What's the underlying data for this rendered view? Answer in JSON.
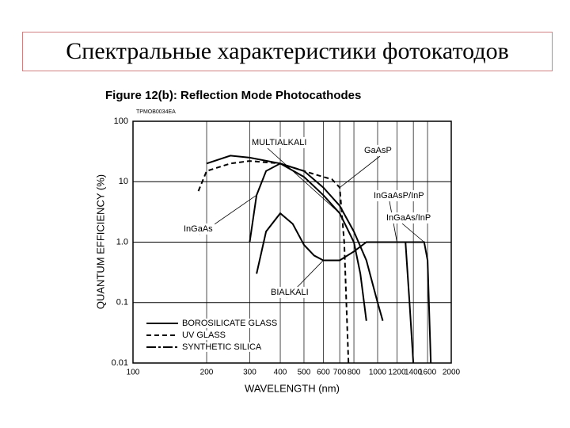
{
  "slide_title": "Спектральные характеристики фотокатодов",
  "chart_data": {
    "type": "line",
    "title": "Figure 12(b): Reflection Mode Photocathodes",
    "subtitle": "TPMOB0034EA",
    "x_label": "WAVELENGTH (nm)",
    "y_label": "QUANTUM EFFICIENCY (%)",
    "x_scale": "log",
    "y_scale": "log",
    "grid": true,
    "xlim": [
      100,
      2000
    ],
    "xticks": [
      100,
      200,
      300,
      400,
      500,
      600,
      700,
      800,
      1000,
      1200,
      1400,
      1600,
      2000
    ],
    "ylim": [
      0.01,
      100
    ],
    "yticks": [
      0.01,
      0.1,
      {
        "value": 1,
        "label": "1.0"
      },
      10,
      100
    ],
    "series": [
      {
        "name": "MULTIALKALI",
        "color": "#000000",
        "dash": "solid",
        "x": [
          200,
          250,
          300,
          400,
          500,
          600,
          700,
          800,
          850,
          900
        ],
        "values": [
          20,
          27,
          25,
          20,
          12,
          6,
          3,
          1,
          0.3,
          0.05
        ]
      },
      {
        "name": "GaAsP",
        "color": "#000000",
        "dash": "dashed",
        "x": [
          185,
          200,
          250,
          300,
          400,
          500,
          600,
          650,
          700,
          730,
          760
        ],
        "values": [
          7,
          15,
          20,
          22,
          20,
          15,
          12,
          11,
          8,
          1,
          0.01
        ]
      },
      {
        "name": "InGaAsP/InP",
        "color": "#000000",
        "dash": "solid",
        "x": [
          700,
          800,
          900,
          1000,
          1100,
          1200,
          1300,
          1350,
          1400
        ],
        "values": [
          0.5,
          0.7,
          1,
          1,
          1,
          1,
          1,
          0.1,
          0.01
        ]
      },
      {
        "name": "InGaAs/InP",
        "color": "#000000",
        "dash": "solid",
        "x": [
          900,
          1000,
          1200,
          1400,
          1500,
          1550,
          1600,
          1650
        ],
        "values": [
          1,
          1,
          1,
          1,
          1,
          1,
          0.5,
          0.01
        ]
      },
      {
        "name": "InGaAs",
        "color": "#000000",
        "dash": "solid",
        "x": [
          300,
          320,
          350,
          400,
          500,
          600,
          700,
          800,
          900,
          1000,
          1050
        ],
        "values": [
          1,
          6,
          15,
          20,
          15,
          8,
          4,
          1.5,
          0.5,
          0.1,
          0.05
        ]
      },
      {
        "name": "BIALKALI",
        "color": "#000000",
        "dash": "solid",
        "x": [
          320,
          350,
          400,
          450,
          500,
          550,
          600,
          650,
          700
        ],
        "values": [
          0.3,
          1.5,
          3,
          2,
          0.9,
          0.6,
          0.5,
          0.5,
          0.5
        ]
      }
    ],
    "legend": [
      {
        "label": "BOROSILICATE GLASS",
        "dash": "solid"
      },
      {
        "label": "UV GLASS",
        "dash": "dashed"
      },
      {
        "label": "SYNTHETIC SILICA",
        "dash": "dashdot"
      }
    ]
  }
}
